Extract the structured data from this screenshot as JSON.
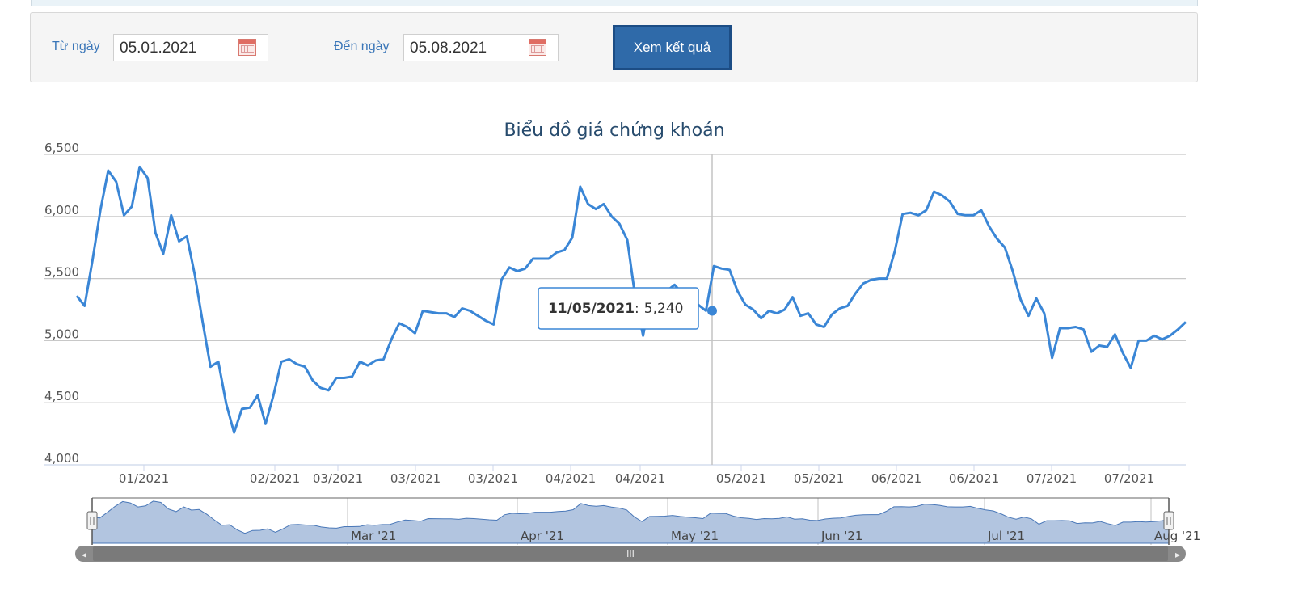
{
  "filter": {
    "from_label": "Từ ngày",
    "from_value": "05.01.2021",
    "to_label": "Đến ngày",
    "to_value": "05.08.2021",
    "submit_label": "Xem kết quả"
  },
  "colors": {
    "line": "#3a86d6",
    "accent": "#2f6aa9",
    "navigator_fill": "#b2c5e0",
    "navigator_line": "#4a78b8",
    "scrollbar": "#808080"
  },
  "chart_data": {
    "type": "line",
    "title": "Biểu đồ giá chứng khoán",
    "ylim": [
      4000,
      6500
    ],
    "y_ticks": [
      4000,
      4500,
      5000,
      5500,
      6000,
      6500
    ],
    "y_tick_labels": [
      "4,000",
      "4,500",
      "5,000",
      "5,500",
      "6,000",
      "6,500"
    ],
    "x_tick_labels": [
      "01/2021",
      "02/2021",
      "03/2021",
      "03/2021",
      "03/2021",
      "04/2021",
      "04/2021",
      "05/2021",
      "05/2021",
      "06/2021",
      "06/2021",
      "07/2021",
      "07/2021"
    ],
    "grid": true,
    "series": [
      {
        "values": [
          5360,
          5280,
          5650,
          6050,
          6370,
          6280,
          6010,
          6080,
          6400,
          6310,
          5870,
          5700,
          6010,
          5800,
          5840,
          5530,
          5150,
          4790,
          4830,
          4490,
          4260,
          4450,
          4460,
          4560,
          4330,
          4560,
          4830,
          4850,
          4810,
          4790,
          4680,
          4620,
          4600,
          4700,
          4700,
          4710,
          4830,
          4800,
          4840,
          4850,
          5010,
          5140,
          5110,
          5060,
          5240,
          5230,
          5220,
          5220,
          5190,
          5260,
          5240,
          5200,
          5160,
          5130,
          5490,
          5590,
          5560,
          5580,
          5660,
          5660,
          5660,
          5710,
          5730,
          5830,
          6240,
          6100,
          6060,
          6100,
          6000,
          5940,
          5810,
          5350,
          5040,
          5380,
          5390,
          5400,
          5450,
          5380,
          5330,
          5290,
          5240,
          5600,
          5580,
          5570,
          5400,
          5290,
          5250,
          5180,
          5240,
          5220,
          5250,
          5350,
          5200,
          5220,
          5130,
          5110,
          5210,
          5260,
          5280,
          5380,
          5460,
          5490,
          5500,
          5500,
          5720,
          6020,
          6030,
          6010,
          6050,
          6200,
          6170,
          6120,
          6020,
          6010,
          6010,
          6050,
          5920,
          5820,
          5750,
          5560,
          5330,
          5200,
          5340,
          5220,
          4860,
          5100,
          5100,
          5110,
          5090,
          4910,
          4960,
          4950,
          5050,
          4900,
          4780,
          5000,
          5000,
          5040,
          5010,
          5040,
          5090,
          5150
        ]
      }
    ],
    "tooltip": {
      "date": "11/05/2021",
      "sep": ":",
      "value": "5,240",
      "point_index": 80
    },
    "navigator": {
      "labels": [
        "Mar '21",
        "Apr '21",
        "May '21",
        "Jun '21",
        "Jul '21",
        "Aug '21"
      ],
      "scroll_grip": "III",
      "left_arrow": "◂",
      "right_arrow": "▸"
    }
  }
}
